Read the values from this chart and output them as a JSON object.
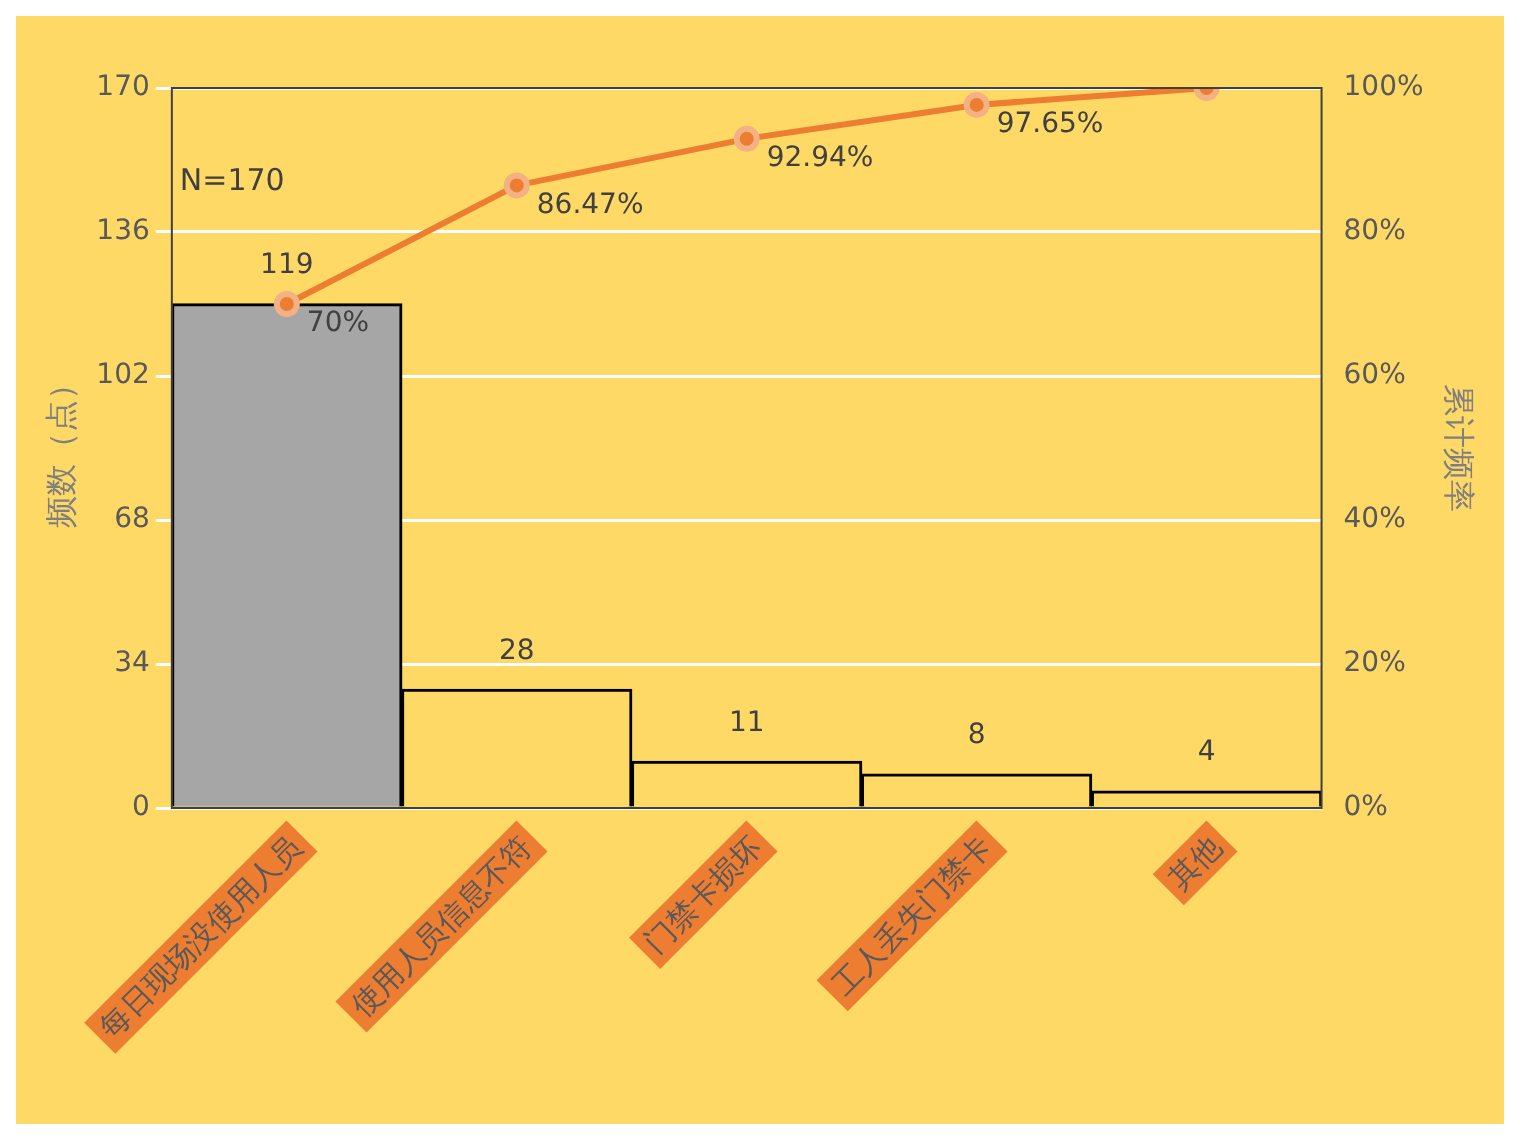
{
  "chart_data": {
    "type": "bar",
    "categories": [
      "每日现场没使用人员",
      "使用人员信息不符",
      "门禁卡损坏",
      "工人丢失门禁卡",
      "其他"
    ],
    "ylabel": "频数（点）",
    "y2label": "累计频率",
    "ylim": [
      0,
      170
    ],
    "yticks": [
      0,
      34,
      68,
      102,
      136,
      170
    ],
    "y2lim": [
      0,
      100
    ],
    "y2ticks": [
      {
        "value": 0,
        "label": "0%"
      },
      {
        "value": 20,
        "label": "20%"
      },
      {
        "value": 40,
        "label": "40%"
      },
      {
        "value": 60,
        "label": "60%"
      },
      {
        "value": 80,
        "label": "80%"
      },
      {
        "value": 100,
        "label": "100%"
      }
    ],
    "series": [
      {
        "colors": [
          "#a6a6a6",
          "#ffd966",
          "#ffd966",
          "#ffd966",
          "#ffd966"
        ],
        "values": [
          119,
          28,
          11,
          8,
          4
        ],
        "value_labels": [
          "119",
          "28",
          "11",
          "8",
          "4"
        ]
      },
      {
        "type": "line",
        "axis": "y2",
        "color": "#ed7d31",
        "values": [
          70,
          86.47,
          92.94,
          97.65,
          100
        ],
        "value_labels": [
          "70%",
          "86.47%",
          "92.94%",
          "97.65%",
          null
        ],
        "marker": "circle"
      }
    ],
    "annotations": [
      "N=170"
    ],
    "grid": "y",
    "legend": false
  }
}
